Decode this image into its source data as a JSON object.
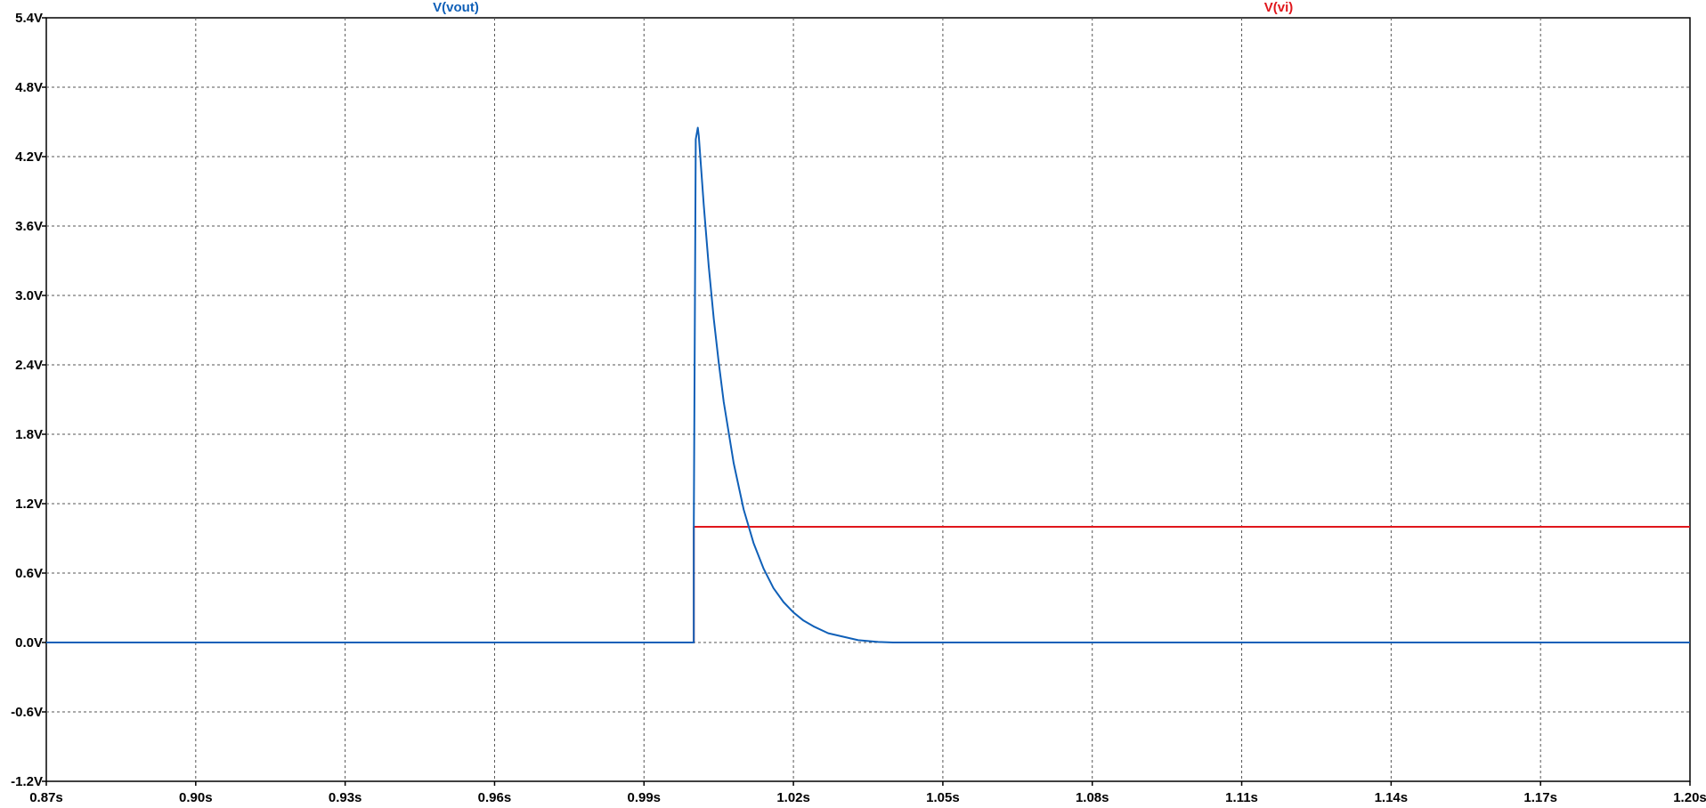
{
  "chart_data": {
    "type": "line",
    "title": "",
    "xlim": [
      0.87,
      1.2
    ],
    "ylim": [
      -1.2,
      5.4
    ],
    "grid": true,
    "x_ticks": [
      {
        "value": 0.87,
        "label": "0.87s"
      },
      {
        "value": 0.9,
        "label": "0.90s"
      },
      {
        "value": 0.93,
        "label": "0.93s"
      },
      {
        "value": 0.96,
        "label": "0.96s"
      },
      {
        "value": 0.99,
        "label": "0.99s"
      },
      {
        "value": 1.02,
        "label": "1.02s"
      },
      {
        "value": 1.05,
        "label": "1.05s"
      },
      {
        "value": 1.08,
        "label": "1.08s"
      },
      {
        "value": 1.11,
        "label": "1.11s"
      },
      {
        "value": 1.14,
        "label": "1.14s"
      },
      {
        "value": 1.17,
        "label": "1.17s"
      },
      {
        "value": 1.2,
        "label": "1.20s"
      }
    ],
    "y_ticks": [
      {
        "value": 5.4,
        "label": "5.4V"
      },
      {
        "value": 4.8,
        "label": "4.8V"
      },
      {
        "value": 4.2,
        "label": "4.2V"
      },
      {
        "value": 3.6,
        "label": "3.6V"
      },
      {
        "value": 3.0,
        "label": "3.0V"
      },
      {
        "value": 2.4,
        "label": "2.4V"
      },
      {
        "value": 1.8,
        "label": "1.8V"
      },
      {
        "value": 1.2,
        "label": "1.2V"
      },
      {
        "value": 0.6,
        "label": "0.6V"
      },
      {
        "value": 0.0,
        "label": "0.0V"
      },
      {
        "value": -0.6,
        "label": "-0.6V"
      },
      {
        "value": -1.2,
        "label": "-1.2V"
      }
    ],
    "series": [
      {
        "name": "V(vout)",
        "color": "#1060b8",
        "points": [
          [
            0.87,
            0.0
          ],
          [
            1.0,
            0.0
          ],
          [
            1.0,
            1.0
          ],
          [
            1.0004,
            4.35
          ],
          [
            1.0008,
            4.45
          ],
          [
            1.001,
            4.38
          ],
          [
            1.002,
            3.78
          ],
          [
            1.003,
            3.25
          ],
          [
            1.004,
            2.8
          ],
          [
            1.005,
            2.42
          ],
          [
            1.006,
            2.08
          ],
          [
            1.008,
            1.55
          ],
          [
            1.01,
            1.15
          ],
          [
            1.012,
            0.86
          ],
          [
            1.014,
            0.64
          ],
          [
            1.016,
            0.47
          ],
          [
            1.018,
            0.35
          ],
          [
            1.02,
            0.26
          ],
          [
            1.022,
            0.19
          ],
          [
            1.024,
            0.14
          ],
          [
            1.027,
            0.08
          ],
          [
            1.03,
            0.05
          ],
          [
            1.033,
            0.02
          ],
          [
            1.037,
            0.005
          ],
          [
            1.04,
            0.0
          ],
          [
            1.2,
            0.0
          ]
        ]
      },
      {
        "name": "V(vi)",
        "color": "#e0161c",
        "points": [
          [
            0.87,
            0.0
          ],
          [
            1.0,
            0.0
          ],
          [
            1.0,
            1.0
          ],
          [
            1.2,
            1.0
          ]
        ]
      }
    ]
  }
}
